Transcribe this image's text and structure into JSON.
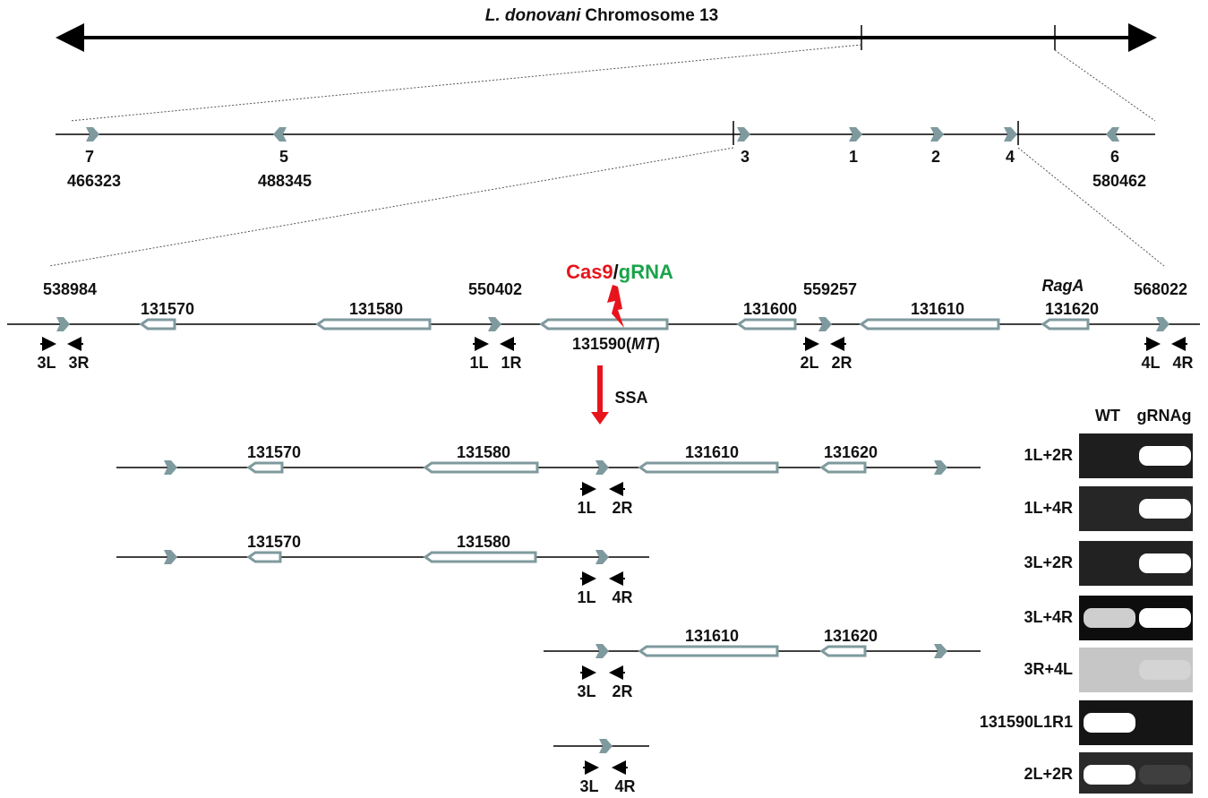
{
  "title": {
    "species": "L. donovani",
    "chromosome": "Chromosome 13"
  },
  "overview": {
    "loci": [
      "7",
      "5",
      "3",
      "1",
      "2",
      "4",
      "6"
    ],
    "coordinates": [
      "466323",
      "488345",
      "580462"
    ]
  },
  "region": {
    "coordinates": [
      "538984",
      "550402",
      "559257",
      "568022"
    ],
    "genes": [
      "131570",
      "131580",
      "131600",
      "131610",
      "131620"
    ],
    "target_gene": {
      "id": "131590(",
      "tag": "MT",
      "close": ")"
    },
    "rag_a": "RagA",
    "nuclease": {
      "cas9": "Cas9",
      "sep": "/",
      "grna": "gRNA"
    },
    "primers": [
      "3L",
      "3R",
      "1L",
      "1R",
      "2L",
      "2R",
      "4L",
      "4R"
    ],
    "process": "SSA"
  },
  "constructs": [
    {
      "genes": [
        "131570",
        "131580",
        "131610",
        "131620"
      ],
      "primers": [
        "1L",
        "2R"
      ]
    },
    {
      "genes": [
        "131570",
        "131580"
      ],
      "primers": [
        "1L",
        "4R"
      ]
    },
    {
      "genes": [
        "131610",
        "131620"
      ],
      "primers": [
        "3L",
        "2R"
      ]
    },
    {
      "genes": [],
      "primers": [
        "3L",
        "4R"
      ]
    }
  ],
  "gel": {
    "columns": [
      "WT",
      "gRNAg"
    ],
    "rows": [
      "1L+2R",
      "1L+4R",
      "3L+2R",
      "3L+4R",
      "3R+4L",
      "131590L1R1",
      "2L+2R"
    ]
  }
}
